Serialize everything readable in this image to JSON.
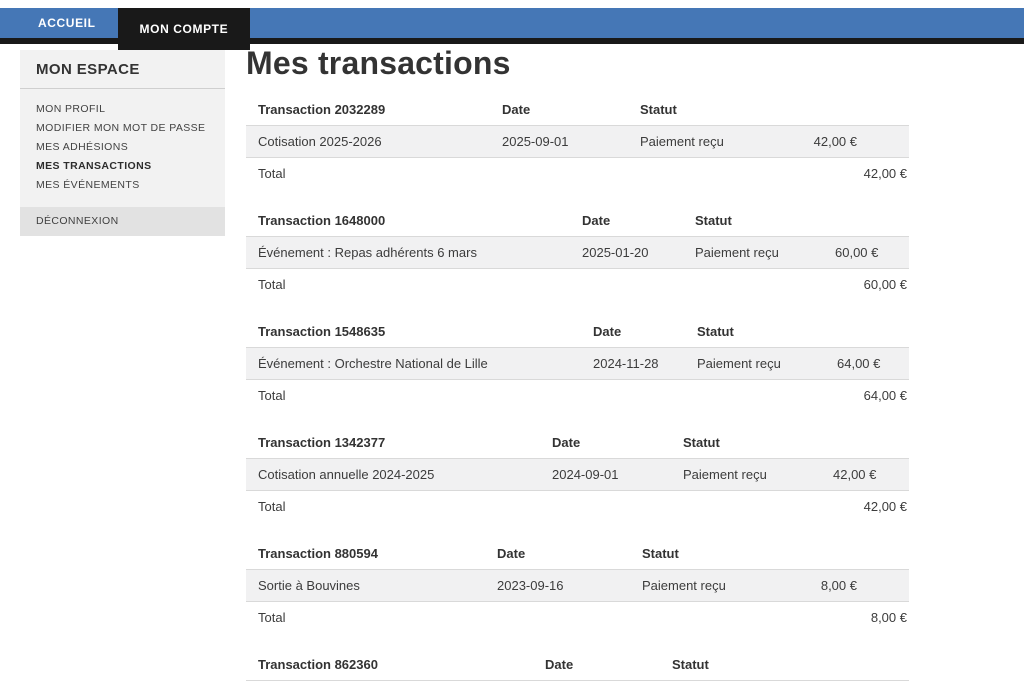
{
  "nav": {
    "tabs": [
      {
        "label": "ACCUEIL",
        "active": false
      },
      {
        "label": "MON COMPTE",
        "active": true
      }
    ]
  },
  "sidebar": {
    "title": "MON ESPACE",
    "items": [
      {
        "label": "MON PROFIL",
        "active": false
      },
      {
        "label": "MODIFIER MON MOT DE PASSE",
        "active": false
      },
      {
        "label": "MES ADHÉSIONS",
        "active": false
      },
      {
        "label": "MES TRANSACTIONS",
        "active": true
      },
      {
        "label": "MES ÉVÉNEMENTS",
        "active": false
      }
    ],
    "logout_label": "DÉCONNEXION"
  },
  "main": {
    "title": "Mes transactions",
    "columns": {
      "date": "Date",
      "status": "Statut"
    },
    "total_label": "Total",
    "transactions": [
      {
        "header": "Transaction 2032289",
        "description": "Cotisation 2025-2026",
        "date": "2025-09-01",
        "status": "Paiement reçu",
        "amount": "42,00 €",
        "total": "42,00 €"
      },
      {
        "header": "Transaction 1648000",
        "description": "Événement : Repas adhérents 6 mars",
        "date": "2025-01-20",
        "status": "Paiement reçu",
        "amount": "60,00 €",
        "total": "60,00 €"
      },
      {
        "header": "Transaction 1548635",
        "description": "Événement : Orchestre National de Lille",
        "date": "2024-11-28",
        "status": "Paiement reçu",
        "amount": "64,00 €",
        "total": "64,00 €"
      },
      {
        "header": "Transaction 1342377",
        "description": "Cotisation annuelle 2024-2025",
        "date": "2024-09-01",
        "status": "Paiement reçu",
        "amount": "42,00 €",
        "total": "42,00 €"
      },
      {
        "header": "Transaction 880594",
        "description": "Sortie à Bouvines",
        "date": "2023-09-16",
        "status": "Paiement reçu",
        "amount": "8,00 €",
        "total": "8,00 €"
      },
      {
        "header": "Transaction 862360"
      }
    ]
  },
  "colors": {
    "accent_blue": "#4577b6",
    "tab_black": "#191919",
    "row_background": "#f1f1f2"
  }
}
